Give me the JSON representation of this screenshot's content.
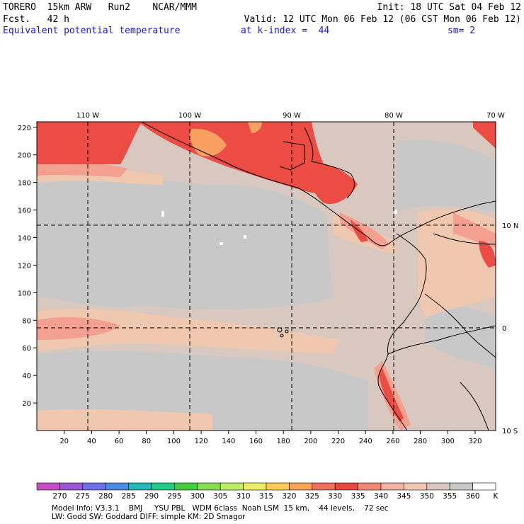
{
  "header": {
    "line1_left": "TORERO  15km ARW   Run2    NCAR/MMM",
    "line1_right": "Init: 18 UTC Sat 04 Feb 12",
    "line2_left": "Fcst.   42 h",
    "line2_right": "Valid: 12 UTC Mon 06 Feb 12 (06 CST Mon 06 Feb 12)",
    "line3_field": "Equivalent potential temperature",
    "line3_level": "at k-index =  44",
    "line3_smooth": "sm= 2"
  },
  "axes": {
    "lon_labels": [
      "110 W",
      "100 W",
      "90 W",
      "80 W",
      "70 W"
    ],
    "lat_labels": [
      "10 N",
      "0",
      "10 S"
    ],
    "y_ticks": [
      "20",
      "40",
      "60",
      "80",
      "100",
      "120",
      "140",
      "160",
      "180",
      "200",
      "220"
    ],
    "x_ticks": [
      "20",
      "40",
      "60",
      "80",
      "100",
      "120",
      "140",
      "160",
      "180",
      "200",
      "220",
      "240",
      "260",
      "280",
      "300",
      "320"
    ]
  },
  "colorbar": {
    "labels": [
      "270",
      "275",
      "280",
      "285",
      "290",
      "295",
      "300",
      "305",
      "310",
      "315",
      "320",
      "325",
      "330",
      "335",
      "340",
      "345",
      "350",
      "355",
      "360"
    ],
    "unit": "K",
    "colors": [
      "#c64fc6",
      "#9a58d0",
      "#6f6fe8",
      "#4a8ce0",
      "#23b7b7",
      "#22cc88",
      "#44cc44",
      "#88dd55",
      "#bbee66",
      "#eeee66",
      "#ffcc55",
      "#f8a45a",
      "#f07060",
      "#e84840",
      "#f08a78",
      "#f2b2a0",
      "#f0c8b4",
      "#d8c6c0",
      "#c8c8c8",
      "#ffffff"
    ]
  },
  "footer": {
    "line1": "Model Info: V3.3.1    BMJ     YSU PBL   WDM 6class  Noah LSM  15 km,    44 levels,    72 sec",
    "line2": "LW: Godd SW: Goddard DIFF: simple KM: 2D Smagor"
  },
  "map_colors": {
    "ocean_base": "#d8c8c0",
    "tan": "#f0c8b0",
    "gray": "#c8c8c8",
    "salmon": "#f4a090",
    "red": "#ec4c44",
    "orange": "#f8a060"
  }
}
